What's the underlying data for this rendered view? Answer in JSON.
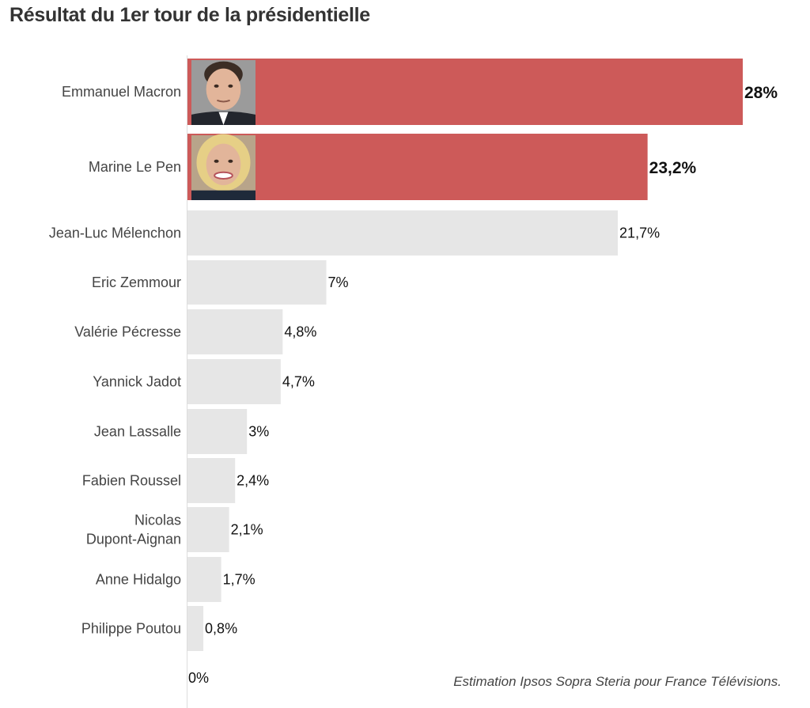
{
  "title": "Résultat du 1er tour de la présidentielle",
  "source": "Estimation Ipsos Sopra Steria pour France Télévisions.",
  "colors": {
    "highlight": "#cd5a59",
    "default": "#e6e6e6",
    "axis": "#dddddd",
    "photo_bg": "#9b9b9b"
  },
  "chart_data": {
    "type": "bar",
    "orientation": "horizontal",
    "xlim": [
      0,
      28
    ],
    "zero_label": "0%",
    "categories": [
      "Emmanuel Macron",
      "Marine Le Pen",
      "Jean-Luc Mélenchon",
      "Eric Zemmour",
      "Valérie Pécresse",
      "Yannick Jadot",
      "Jean Lassalle",
      "Fabien Roussel",
      "Nicolas Dupont-Aignan",
      "Anne Hidalgo",
      "Philippe Poutou"
    ],
    "label_lines": [
      [
        "Emmanuel Macron"
      ],
      [
        "Marine Le Pen"
      ],
      [
        "Jean-Luc Mélenchon"
      ],
      [
        "Eric Zemmour"
      ],
      [
        "Valérie Pécresse"
      ],
      [
        "Yannick Jadot"
      ],
      [
        "Jean Lassalle"
      ],
      [
        "Fabien Roussel"
      ],
      [
        "Nicolas",
        "Dupont-Aignan"
      ],
      [
        "Anne Hidalgo"
      ],
      [
        "Philippe Poutou"
      ]
    ],
    "values": [
      28,
      23.2,
      21.7,
      7,
      4.8,
      4.7,
      3,
      2.4,
      2.1,
      1.7,
      0.8
    ],
    "value_labels": [
      "28%",
      "23,2%",
      "21,7%",
      "7%",
      "4,8%",
      "4,7%",
      "3%",
      "2,4%",
      "2,1%",
      "1,7%",
      "0,8%"
    ],
    "highlighted": [
      true,
      true,
      false,
      false,
      false,
      false,
      false,
      false,
      false,
      false,
      false
    ],
    "photos": [
      "macron-photo",
      "le-pen-photo",
      null,
      null,
      null,
      null,
      null,
      null,
      null,
      null,
      null
    ]
  }
}
